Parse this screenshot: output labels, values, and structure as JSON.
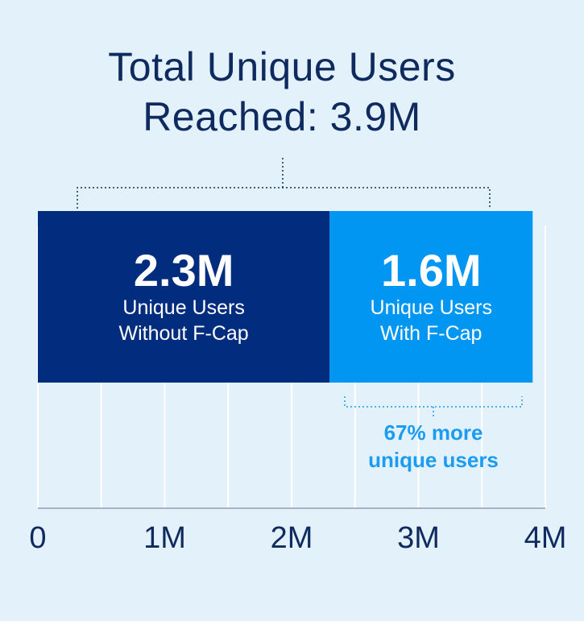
{
  "title": {
    "line1": "Total Unique Users",
    "line2": "Reached: 3.9M"
  },
  "chart_data": {
    "type": "bar",
    "orientation": "horizontal",
    "stacked": true,
    "series": [
      {
        "value": 2.3,
        "label_value": "2.3M",
        "label_line1": "Unique Users",
        "label_line2": "Without F-Cap",
        "color": "#022d7e"
      },
      {
        "value": 1.6,
        "label_value": "1.6M",
        "label_line1": "Unique Users",
        "label_line2": "With F-Cap",
        "color": "#0096f2"
      }
    ],
    "total": 3.9,
    "xlim": [
      0,
      4
    ],
    "ticks": [
      0,
      1,
      2,
      3,
      4
    ],
    "tick_labels": [
      "0",
      "1M",
      "2M",
      "3M",
      "4M"
    ],
    "grid": true,
    "annotation": {
      "line1": "67% more",
      "line2": "unique users"
    }
  },
  "colors": {
    "background": "#e3f1fa",
    "title": "#0f2a5f",
    "accent": "#1a9cf3",
    "grid": "#ffffff"
  }
}
